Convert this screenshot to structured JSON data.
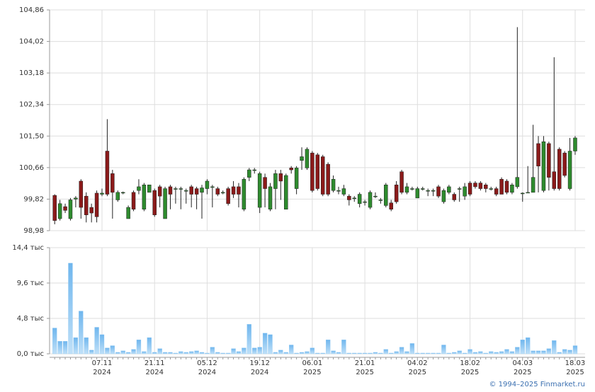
{
  "chart_data": [
    {
      "type": "candlestick",
      "ylim": [
        98.98,
        104.86
      ],
      "yticks": [
        {
          "value": 104.86,
          "label": "104,86"
        },
        {
          "value": 104.02,
          "label": "104,02"
        },
        {
          "value": 103.18,
          "label": "103,18"
        },
        {
          "value": 102.34,
          "label": "102,34"
        },
        {
          "value": 101.5,
          "label": "101,50"
        },
        {
          "value": 100.66,
          "label": "100,66"
        },
        {
          "value": 99.82,
          "label": "99,82"
        },
        {
          "value": 98.98,
          "label": "98,98"
        }
      ],
      "grid": true,
      "up_color": "#2e8b2e",
      "down_color": "#8b1a1a",
      "open": [
        99.92,
        99.3,
        99.62,
        99.3,
        99.82,
        100.3,
        99.9,
        99.6,
        99.98,
        99.95,
        101.1,
        100.5,
        99.8,
        100.0,
        99.3,
        100.0,
        100.05,
        99.55,
        100.0,
        100.05,
        100.15,
        99.3,
        100.15,
        100.1,
        100.1,
        100.05,
        100.15,
        100.1,
        100.0,
        100.1,
        100.15,
        100.1,
        100.0,
        100.1,
        100.15,
        100.15,
        99.55,
        100.4,
        100.6,
        99.6,
        100.4,
        99.55,
        100.1,
        100.5,
        99.55,
        100.65,
        100.1,
        100.85,
        100.65,
        101.05,
        101.0,
        100.95,
        100.75,
        100.05,
        100.05,
        99.95,
        99.9,
        99.85,
        99.7,
        99.75,
        99.6,
        99.9,
        99.8,
        99.65,
        99.72,
        100.2,
        100.55,
        100.0,
        100.1,
        99.85,
        100.1,
        100.05,
        100.05,
        100.15,
        99.75,
        100.0,
        99.95,
        100.1,
        99.9,
        100.25,
        100.25,
        100.25,
        100.2,
        100.1,
        100.1,
        100.35,
        100.3,
        100.0,
        100.15,
        99.98,
        100.0,
        100.0,
        101.3,
        100.05,
        101.3,
        100.55,
        101.15,
        101.05,
        100.1,
        101.1
      ],
      "high": [
        99.95,
        99.8,
        99.7,
        99.85,
        99.9,
        100.35,
        100.0,
        99.7,
        100.05,
        100.1,
        101.95,
        100.6,
        100.05,
        100.02,
        99.65,
        100.05,
        100.35,
        100.25,
        100.2,
        100.1,
        100.2,
        100.15,
        100.2,
        100.15,
        100.15,
        100.1,
        100.2,
        100.15,
        100.2,
        100.35,
        100.2,
        100.15,
        100.05,
        100.15,
        100.3,
        100.25,
        100.4,
        100.65,
        100.65,
        100.55,
        100.5,
        100.25,
        100.6,
        100.6,
        100.5,
        100.7,
        100.7,
        101.2,
        101.2,
        101.1,
        101.05,
        101.0,
        100.8,
        100.45,
        100.15,
        100.2,
        99.95,
        99.9,
        100.0,
        99.8,
        100.05,
        100.0,
        99.85,
        100.25,
        99.8,
        100.3,
        100.6,
        100.25,
        100.15,
        100.15,
        100.15,
        100.1,
        100.1,
        100.2,
        100.1,
        100.2,
        100.0,
        100.15,
        100.25,
        100.3,
        100.3,
        100.3,
        100.25,
        100.15,
        100.15,
        100.4,
        100.35,
        100.25,
        104.4,
        100.0,
        100.7,
        101.8,
        101.5,
        101.5,
        101.35,
        103.6,
        101.2,
        101.1,
        101.45,
        101.5
      ],
      "low": [
        99.15,
        99.25,
        99.45,
        99.25,
        99.6,
        99.3,
        99.2,
        99.2,
        99.2,
        99.9,
        99.9,
        99.3,
        99.75,
        99.95,
        99.3,
        99.5,
        99.95,
        99.5,
        100.0,
        99.35,
        99.6,
        99.3,
        99.55,
        99.7,
        99.55,
        99.7,
        99.6,
        99.55,
        99.3,
        99.95,
        99.6,
        99.9,
        99.95,
        99.65,
        99.85,
        99.6,
        99.5,
        100.3,
        100.5,
        99.45,
        99.6,
        99.5,
        99.55,
        99.8,
        99.55,
        100.5,
        99.95,
        100.6,
        100.6,
        100.0,
        100.05,
        99.9,
        99.9,
        100.0,
        99.95,
        99.9,
        99.65,
        99.75,
        99.6,
        99.65,
        99.55,
        99.85,
        99.7,
        99.6,
        99.5,
        99.7,
        99.95,
        99.95,
        100.05,
        99.85,
        100.05,
        99.9,
        99.9,
        99.85,
        99.7,
        99.95,
        99.75,
        99.75,
        99.8,
        99.9,
        100.1,
        100.05,
        100.0,
        100.05,
        99.9,
        99.95,
        99.95,
        99.95,
        100.1,
        99.75,
        100.0,
        100.0,
        100.0,
        100.0,
        100.05,
        100.05,
        100.05,
        100.4,
        100.05,
        101.0
      ],
      "close": [
        99.25,
        99.7,
        99.52,
        99.8,
        99.85,
        99.6,
        99.4,
        99.45,
        99.35,
        99.98,
        99.95,
        100.0,
        100.0,
        100.0,
        99.6,
        99.55,
        100.15,
        100.2,
        100.2,
        99.4,
        99.9,
        100.1,
        99.95,
        100.1,
        100.1,
        100.05,
        99.95,
        99.95,
        100.12,
        100.3,
        100.15,
        99.95,
        100.0,
        99.7,
        99.95,
        99.95,
        100.35,
        100.6,
        100.6,
        100.5,
        100.1,
        100.15,
        100.5,
        100.3,
        100.45,
        100.6,
        100.65,
        100.95,
        101.15,
        100.05,
        100.1,
        99.95,
        99.95,
        100.35,
        100.05,
        100.1,
        99.8,
        99.85,
        99.95,
        99.75,
        100.0,
        99.9,
        99.8,
        100.2,
        99.55,
        99.75,
        100.0,
        100.15,
        100.1,
        100.1,
        100.1,
        100.05,
        100.05,
        99.9,
        100.05,
        100.15,
        99.8,
        100.1,
        100.15,
        99.95,
        100.15,
        100.1,
        100.1,
        100.1,
        99.95,
        99.95,
        100.0,
        100.2,
        100.4,
        99.98,
        100.0,
        100.4,
        100.7,
        101.35,
        100.4,
        100.1,
        100.1,
        100.45,
        101.1,
        101.45
      ]
    },
    {
      "type": "bar",
      "categories": [
        null,
        null,
        null,
        null,
        null,
        null,
        null,
        null,
        null,
        "07.11",
        null,
        null,
        null,
        null,
        null,
        null,
        null,
        null,
        null,
        "21.11",
        null,
        null,
        null,
        null,
        null,
        null,
        null,
        null,
        null,
        "05.12",
        null,
        null,
        null,
        null,
        null,
        null,
        null,
        null,
        null,
        "19.12",
        null,
        null,
        null,
        null,
        null,
        null,
        null,
        null,
        null,
        "06.01",
        null,
        null,
        null,
        null,
        null,
        null,
        null,
        null,
        null,
        "21.01",
        null,
        null,
        null,
        null,
        null,
        null,
        null,
        null,
        null,
        "04.02",
        null,
        null,
        null,
        null,
        null,
        null,
        null,
        null,
        null,
        "18.02",
        null,
        null,
        null,
        null,
        null,
        null,
        null,
        null,
        null,
        "04.03",
        null,
        null,
        null,
        null,
        null,
        null,
        null,
        null,
        null,
        "18.03"
      ],
      "years": [
        null,
        null,
        null,
        null,
        null,
        null,
        null,
        null,
        null,
        "2024",
        null,
        null,
        null,
        null,
        null,
        null,
        null,
        null,
        null,
        "2024",
        null,
        null,
        null,
        null,
        null,
        null,
        null,
        null,
        null,
        "2024",
        null,
        null,
        null,
        null,
        null,
        null,
        null,
        null,
        null,
        "2024",
        null,
        null,
        null,
        null,
        null,
        null,
        null,
        null,
        null,
        "2025",
        null,
        null,
        null,
        null,
        null,
        null,
        null,
        null,
        null,
        "2025",
        null,
        null,
        null,
        null,
        null,
        null,
        null,
        null,
        null,
        "2025",
        null,
        null,
        null,
        null,
        null,
        null,
        null,
        null,
        null,
        "2025",
        null,
        null,
        null,
        null,
        null,
        null,
        null,
        null,
        null,
        "2025",
        null,
        null,
        null,
        null,
        null,
        null,
        null,
        null,
        null,
        "2025"
      ],
      "values": [
        3.5,
        1.7,
        1.7,
        12.3,
        2.2,
        5.8,
        2.2,
        0.5,
        3.6,
        2.6,
        0.8,
        1.1,
        0.2,
        0.4,
        0.2,
        0.6,
        1.9,
        0.3,
        2.2,
        0.2,
        0.7,
        0.2,
        0.2,
        0.1,
        0.3,
        0.2,
        0.3,
        0.4,
        0.2,
        0.1,
        0.9,
        0.2,
        0.1,
        0.1,
        0.7,
        0.3,
        0.8,
        4.0,
        0.8,
        0.9,
        2.8,
        2.6,
        0.2,
        0.5,
        0.2,
        1.2,
        0.1,
        0.2,
        0.3,
        0.8,
        0.1,
        0.1,
        1.9,
        0.4,
        0.2,
        1.9,
        0.1,
        0.1,
        0.1,
        0.1,
        0.1,
        0.2,
        0.1,
        0.6,
        0.1,
        0.3,
        0.9,
        0.3,
        1.4,
        0.1,
        0.1,
        0.1,
        0.1,
        0.1,
        1.2,
        0.1,
        0.2,
        0.4,
        0.1,
        0.6,
        0.2,
        0.3,
        0.1,
        0.3,
        0.2,
        0.3,
        0.6,
        0.3,
        0.9,
        1.9,
        2.2,
        0.4,
        0.4,
        0.4,
        0.7,
        1.8,
        0.2,
        0.6,
        0.5,
        1.1
      ],
      "color": "#8ec8f2",
      "ylim": [
        0,
        14.4
      ],
      "yticks": [
        {
          "value": 0,
          "label": "0,0 тыс"
        },
        {
          "value": 4.8,
          "label": "4,8 тыс"
        },
        {
          "value": 9.6,
          "label": "9,6 тыс"
        },
        {
          "value": 14.4,
          "label": "14,4 тыс"
        }
      ],
      "grid": true,
      "source": "© 1994–2025 Finmarket.ru"
    }
  ]
}
